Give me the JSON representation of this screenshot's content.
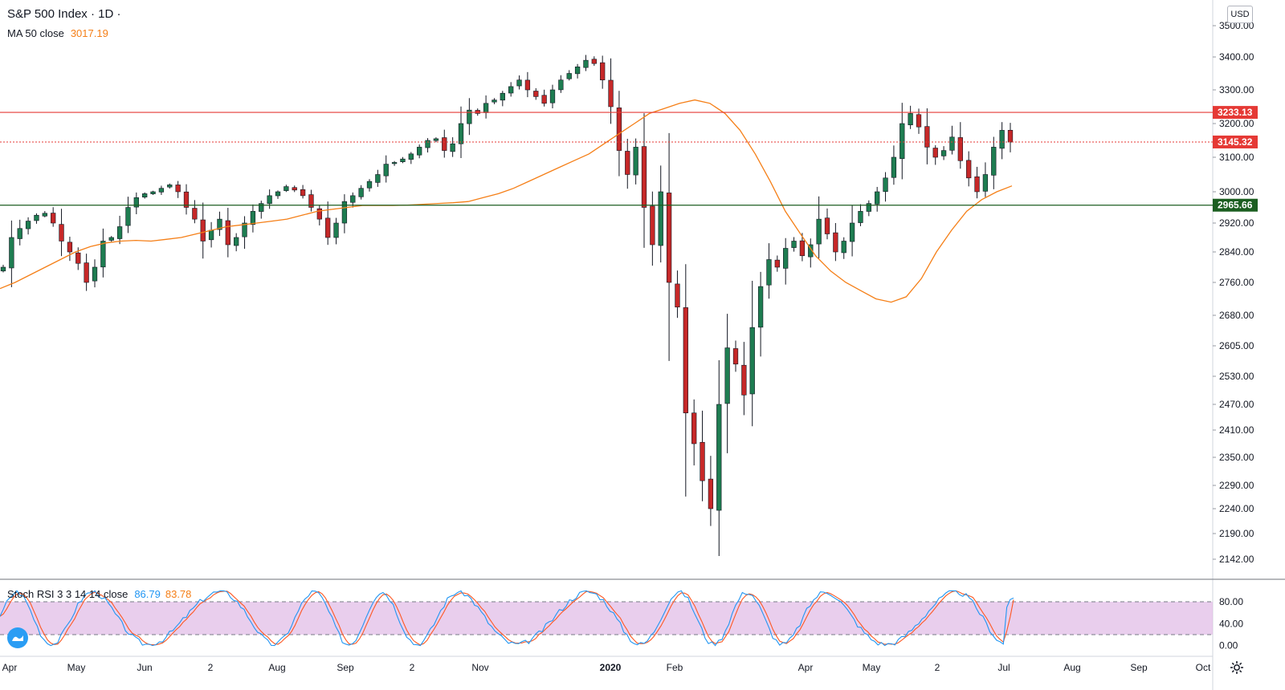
{
  "symbol_title": "S&P 500 Index · 1D ·",
  "ma_label": "MA 50 close",
  "ma_value": "3017.19",
  "stoch_label": "Stoch RSI 3 3 14 14 close",
  "stoch_k_value": "86.79",
  "stoch_d_value": "83.78",
  "currency": "USD",
  "colors": {
    "up": "#26a69a",
    "down": "#ef5350",
    "candle_up_fill": "#1e7d51",
    "candle_down_fill": "#c62828",
    "ma": "#f57f17",
    "resistance": "#e53935",
    "support": "#1b5e20",
    "stoch_k": "#2196f3",
    "stoch_d": "#ff5722",
    "stoch_band": "#e1bee7"
  },
  "chart_data": [
    {
      "type": "candlestick",
      "title": "S&P 500 Index",
      "timeframe": "1D",
      "x_labels": [
        "Apr",
        "May",
        "Jun",
        "2",
        "Aug",
        "Sep",
        "2",
        "Nov",
        "2020",
        "Feb",
        "Apr",
        "May",
        "2",
        "Jul",
        "Aug",
        "Sep",
        "Oct"
      ],
      "y_ticks": [
        "3500.00",
        "3400.00",
        "3300.00",
        "3200.00",
        "3100.00",
        "3000.00",
        "2920.00",
        "2840.00",
        "2760.00",
        "2680.00",
        "2605.00",
        "2530.00",
        "2470.00",
        "2410.00",
        "2350.00",
        "2290.00",
        "2240.00",
        "2190.00",
        "2142.00"
      ],
      "close_path": [
        2800,
        2880,
        2905,
        2925,
        2940,
        2945,
        2920,
        2870,
        2840,
        2810,
        2760,
        2800,
        2870,
        2880,
        2910,
        2960,
        2985,
        2995,
        3000,
        3010,
        3020,
        3000,
        2960,
        2930,
        2870,
        2900,
        2930,
        2860,
        2880,
        2920,
        2950,
        2970,
        2990,
        3000,
        3015,
        3005,
        2990,
        2960,
        2930,
        2880,
        2920,
        2975,
        2990,
        3010,
        3030,
        3050,
        3080,
        3085,
        3095,
        3110,
        3130,
        3150,
        3155,
        3120,
        3140,
        3200,
        3240,
        3230,
        3260,
        3270,
        3290,
        3310,
        3330,
        3300,
        3280,
        3260,
        3300,
        3330,
        3350,
        3370,
        3390,
        3380,
        3330,
        3250,
        3120,
        3050,
        3130,
        2960,
        2860,
        3000,
        2760,
        2700,
        2450,
        2380,
        2300,
        2240,
        2470,
        2600,
        2560,
        2490,
        2650,
        2750,
        2820,
        2800,
        2850,
        2870,
        2830,
        2860,
        2930,
        2890,
        2840,
        2870,
        2920,
        2950,
        2970,
        3000,
        3040,
        3100,
        3200,
        3230,
        3190,
        3130,
        3100,
        3120,
        3160,
        3090,
        3040,
        3000,
        3050,
        3130,
        3180,
        3145
      ],
      "ma50_path": [
        2745,
        2760,
        2780,
        2800,
        2820,
        2840,
        2855,
        2865,
        2870,
        2872,
        2870,
        2875,
        2880,
        2890,
        2900,
        2910,
        2915,
        2920,
        2925,
        2930,
        2940,
        2950,
        2955,
        2960,
        2965,
        2965,
        2965,
        2966,
        2968,
        2970,
        2972,
        2975,
        2985,
        2995,
        3010,
        3030,
        3050,
        3070,
        3090,
        3110,
        3140,
        3170,
        3200,
        3230,
        3245,
        3260,
        3270,
        3260,
        3230,
        3180,
        3110,
        3030,
        2950,
        2890,
        2830,
        2790,
        2760,
        2740,
        2720,
        2712,
        2725,
        2770,
        2840,
        2900,
        2950,
        2980,
        3000,
        3017
      ],
      "resistance_level": 3233.13,
      "resistance_label": "3233.13",
      "last_price": 3145.32,
      "last_price_label": "3145.32",
      "support_level": 2965.66,
      "support_label": "2965.66",
      "y_range": [
        2130,
        3540
      ]
    },
    {
      "type": "line",
      "title": "Stoch RSI 3 3 14 14 close",
      "y_ticks": [
        "80.00",
        "40.00",
        "0.00"
      ],
      "upper_band": 80,
      "lower_band": 20,
      "y_range": [
        -5,
        105
      ],
      "k_value": 86.79,
      "d_value": 83.78
    }
  ]
}
